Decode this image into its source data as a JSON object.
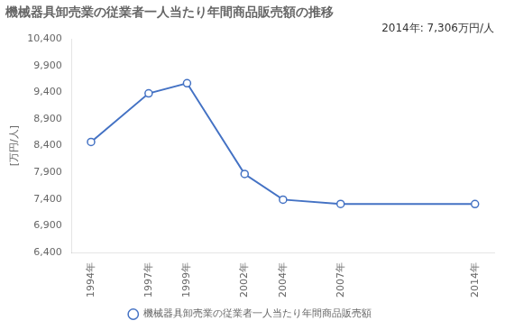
{
  "chart_data": {
    "type": "line",
    "title": "機械器具卸売業の従業者一人当たり年間商品販売額の推移",
    "subtitle": "2014年: 7,306万円/人",
    "ylabel": "[万円/人]",
    "x": [
      1994,
      1997,
      1999,
      2002,
      2004,
      2007,
      2014
    ],
    "series": [
      {
        "name": "機械器具卸売業の従業者一人当たり年間商品販売額",
        "color": "#4472C4",
        "marker": "circle",
        "values": [
          8470,
          9380,
          9570,
          7870,
          7390,
          7310,
          7306
        ]
      }
    ],
    "xlim": [
      1993,
      2015
    ],
    "xticks": [
      {
        "value": 1994,
        "label": "1994年"
      },
      {
        "value": 1997,
        "label": "1997年"
      },
      {
        "value": 1999,
        "label": "1999年"
      },
      {
        "value": 2002,
        "label": "2002年"
      },
      {
        "value": 2004,
        "label": "2004年"
      },
      {
        "value": 2007,
        "label": "2007年"
      },
      {
        "value": 2014,
        "label": "2014年"
      }
    ],
    "ylim": [
      6400,
      10400
    ],
    "yticks": [
      {
        "value": 6400,
        "label": "6,400"
      },
      {
        "value": 6900,
        "label": "6,900"
      },
      {
        "value": 7400,
        "label": "7,400"
      },
      {
        "value": 7900,
        "label": "7,900"
      },
      {
        "value": 8400,
        "label": "8,400"
      },
      {
        "value": 8900,
        "label": "8,900"
      },
      {
        "value": 9400,
        "label": "9,400"
      },
      {
        "value": 9900,
        "label": "9,900"
      },
      {
        "value": 10400,
        "label": "10,400"
      }
    ],
    "grid": false,
    "legend": "bottom"
  }
}
